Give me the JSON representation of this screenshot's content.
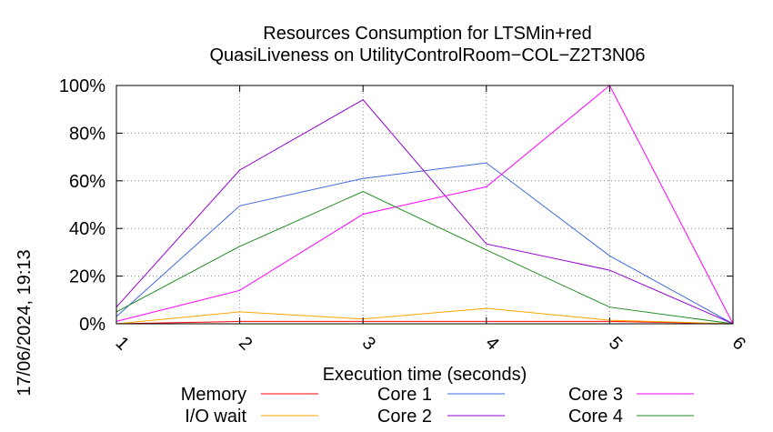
{
  "chart_data": {
    "type": "line",
    "title_lines": [
      "Resources Consumption for LTSMin+red",
      "QuasiLiveness on UtilityControlRoom−COL−Z2T3N06"
    ],
    "xlabel": "Execution time (seconds)",
    "ylabel": "",
    "side_label": "17/06/2024, 19:13",
    "x": [
      1,
      2,
      3,
      4,
      5,
      6
    ],
    "xlim": [
      1,
      6
    ],
    "ylim": [
      0,
      100
    ],
    "x_ticks": [
      "1",
      "2",
      "3",
      "4",
      "5",
      "6"
    ],
    "y_ticks": [
      "0%",
      "20%",
      "40%",
      "60%",
      "80%",
      "100%"
    ],
    "y_tick_values": [
      0,
      20,
      40,
      60,
      80,
      100
    ],
    "grid": true,
    "legend_position": "bottom",
    "series": [
      {
        "name": "Memory",
        "color": "#ff0000",
        "values": [
          0,
          1,
          1,
          1,
          1,
          0
        ]
      },
      {
        "name": "I/O wait",
        "color": "#ffa500",
        "values": [
          0,
          5,
          2,
          6.5,
          1.5,
          0
        ]
      },
      {
        "name": "Core 1",
        "color": "#4169e1",
        "values": [
          3,
          49.5,
          61,
          67.5,
          28.5,
          0
        ]
      },
      {
        "name": "Core 2",
        "color": "#9400d3",
        "values": [
          7,
          64.5,
          94,
          33.5,
          22.5,
          0
        ]
      },
      {
        "name": "Core 3",
        "color": "#ff00ff",
        "values": [
          1,
          14,
          46,
          57.5,
          100,
          0
        ]
      },
      {
        "name": "Core 4",
        "color": "#228b22",
        "values": [
          5,
          32.5,
          55.5,
          31,
          7,
          0
        ]
      }
    ]
  }
}
